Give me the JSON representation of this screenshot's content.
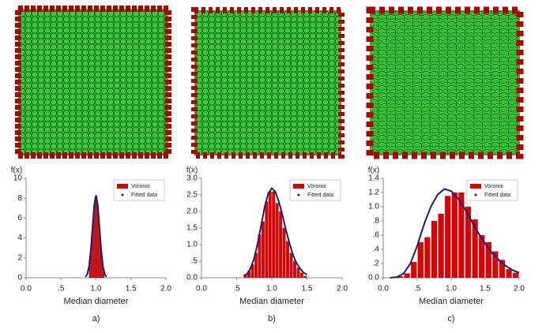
{
  "chart_data": [
    {
      "type": "histogram",
      "caption": "a)",
      "y_label": "f(x)",
      "x_label": "Median diameter",
      "bins": [
        0.9,
        0.92,
        0.94,
        0.96,
        0.98,
        1.0,
        1.02,
        1.04,
        1.06,
        1.08,
        1.1,
        1.12
      ],
      "series": [
        {
          "name": "Voronoi",
          "color": "#e00000",
          "values": [
            1.6,
            3.0,
            4.8,
            6.7,
            7.8,
            8.2,
            6.7,
            4.8,
            3.0,
            1.6,
            0.6
          ]
        }
      ],
      "fit": {
        "name": "Fitted data",
        "color": "#1c1c78",
        "x": [
          0.85,
          0.875,
          0.9,
          0.925,
          0.95,
          0.975,
          1.0,
          1.025,
          1.05,
          1.075,
          1.1,
          1.125,
          1.15
        ],
        "values": [
          0.09,
          0.36,
          1.12,
          2.69,
          5.03,
          7.33,
          8.3,
          7.33,
          5.03,
          2.69,
          1.12,
          0.36,
          0.09
        ]
      },
      "xlim": [
        0,
        2
      ],
      "ylim": [
        0,
        10
      ],
      "xticks": [
        {
          "value": 0,
          "label": "0.0"
        },
        {
          "value": 0.5,
          "label": ".5"
        },
        {
          "value": 1,
          "label": "1.0"
        },
        {
          "value": 1.5,
          "label": "1.5"
        },
        {
          "value": 2,
          "label": "2.0"
        }
      ],
      "yticks": [
        0,
        2,
        4,
        6,
        8,
        10
      ]
    },
    {
      "type": "histogram",
      "caption": "b)",
      "y_label": "f(x)",
      "x_label": "Median diameter",
      "bins": [
        0.6,
        0.65,
        0.7,
        0.75,
        0.8,
        0.85,
        0.9,
        0.95,
        1.0,
        1.05,
        1.1,
        1.15,
        1.2,
        1.25,
        1.3,
        1.35,
        1.4,
        1.45,
        1.5
      ],
      "series": [
        {
          "name": "Voronoi",
          "color": "#e00000",
          "values": [
            0.1,
            0.2,
            0.4,
            0.75,
            1.3,
            1.7,
            2.3,
            2.6,
            2.6,
            2.25,
            2.0,
            1.5,
            1.1,
            0.75,
            0.5,
            0.3,
            0.15,
            0.05
          ]
        }
      ],
      "fit": {
        "name": "Fitted data",
        "color": "#1c1c78",
        "x": [
          0.6,
          0.65,
          0.7,
          0.75,
          0.8,
          0.85,
          0.9,
          0.95,
          1.0,
          1.05,
          1.1,
          1.15,
          1.2,
          1.25,
          1.3,
          1.35,
          1.4,
          1.45,
          1.5
        ],
        "values": [
          0.05,
          0.12,
          0.3,
          0.6,
          1.05,
          1.6,
          2.15,
          2.55,
          2.7,
          2.6,
          2.3,
          1.9,
          1.45,
          1.05,
          0.7,
          0.45,
          0.28,
          0.16,
          0.09
        ]
      },
      "xlim": [
        0,
        2
      ],
      "ylim": [
        0,
        3
      ],
      "xticks": [
        {
          "value": 0,
          "label": "0.0"
        },
        {
          "value": 0.5,
          "label": ".5"
        },
        {
          "value": 1,
          "label": "1.0"
        },
        {
          "value": 1.5,
          "label": "1.5"
        },
        {
          "value": 2,
          "label": "2.0"
        }
      ],
      "yticks": [
        {
          "value": 0,
          "label": "0.0"
        },
        {
          "value": 0.5,
          "label": ".5"
        },
        {
          "value": 1,
          "label": "1.0"
        },
        {
          "value": 1.5,
          "label": "1.5"
        },
        {
          "value": 2,
          "label": "2.0"
        },
        {
          "value": 2.5,
          "label": "2.5"
        },
        {
          "value": 3,
          "label": "3.0"
        }
      ]
    },
    {
      "type": "histogram",
      "caption": "c)",
      "y_label": "f(x)",
      "x_label": "Median diameter",
      "bins": [
        0.2,
        0.3,
        0.4,
        0.5,
        0.6,
        0.7,
        0.8,
        0.9,
        1.0,
        1.1,
        1.2,
        1.3,
        1.4,
        1.5,
        1.6,
        1.7,
        1.8,
        1.9,
        2.0
      ],
      "series": [
        {
          "name": "Voronoi",
          "color": "#e00000",
          "values": [
            0.02,
            0.06,
            0.22,
            0.5,
            0.57,
            0.8,
            0.9,
            1.15,
            1.2,
            1.2,
            1.0,
            0.82,
            0.6,
            0.5,
            0.37,
            0.25,
            0.12,
            0.07
          ]
        }
      ],
      "fit": {
        "name": "Fitted data",
        "color": "#1c1c78",
        "x": [
          0.1,
          0.2,
          0.3,
          0.4,
          0.5,
          0.6,
          0.7,
          0.8,
          0.9,
          1.0,
          1.1,
          1.2,
          1.3,
          1.4,
          1.5,
          1.6,
          1.7,
          1.8,
          1.9,
          2.0
        ],
        "values": [
          0.0,
          0.01,
          0.06,
          0.2,
          0.45,
          0.75,
          1.0,
          1.17,
          1.25,
          1.22,
          1.12,
          0.97,
          0.8,
          0.63,
          0.48,
          0.35,
          0.25,
          0.17,
          0.11,
          0.07
        ]
      },
      "xlim": [
        0,
        2
      ],
      "ylim": [
        0,
        1.4
      ],
      "xticks": [
        {
          "value": 0,
          "label": "0.0"
        },
        {
          "value": 0.5,
          "label": ".5"
        },
        {
          "value": 1,
          "label": "1.0"
        },
        {
          "value": 1.5,
          "label": "1.5"
        },
        {
          "value": 2,
          "label": "2.0"
        }
      ],
      "yticks": [
        {
          "value": 0,
          "label": "0.0"
        },
        {
          "value": 0.2,
          "label": ".2"
        },
        {
          "value": 0.4,
          "label": ".4"
        },
        {
          "value": 0.6,
          "label": ".6"
        },
        {
          "value": 0.8,
          "label": ".8"
        },
        {
          "value": 1,
          "label": "1.0"
        },
        {
          "value": 1.2,
          "label": "1.2"
        },
        {
          "value": 1.4,
          "label": "1.4"
        }
      ]
    }
  ]
}
